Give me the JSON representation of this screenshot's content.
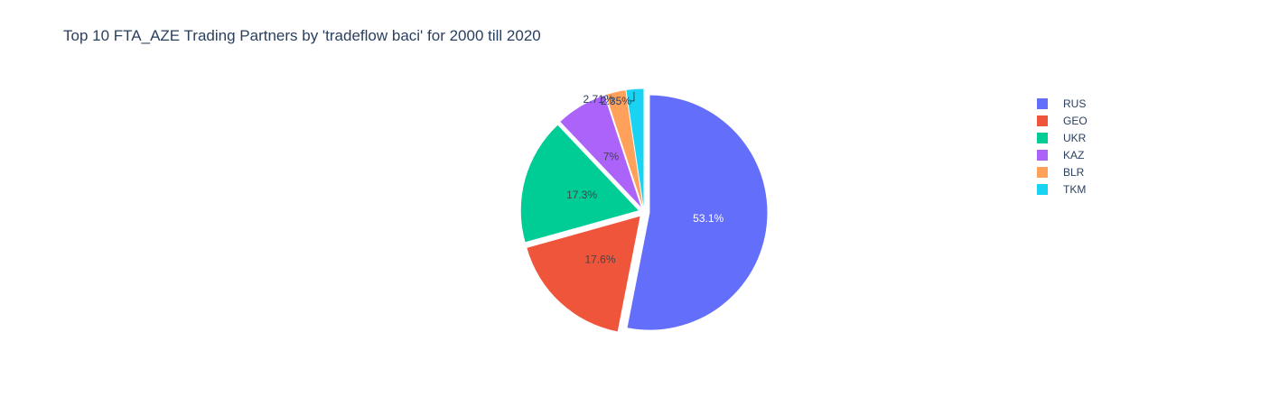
{
  "chart_data": {
    "type": "pie",
    "title": "Top 10 FTA_AZE Trading Partners by 'tradeflow baci' for 2000 till 2020",
    "legend_position": "top-right",
    "slices": [
      {
        "label": "RUS",
        "value": 53.1,
        "text": "53.1%",
        "color": "#636efa",
        "text_color": "#ffffff"
      },
      {
        "label": "GEO",
        "value": 17.6,
        "text": "17.6%",
        "color": "#ef553b",
        "text_color": "#444444"
      },
      {
        "label": "UKR",
        "value": 17.3,
        "text": "17.3%",
        "color": "#00cc96",
        "text_color": "#444444"
      },
      {
        "label": "KAZ",
        "value": 7,
        "text": "7%",
        "color": "#ab63fa",
        "text_color": "#444444"
      },
      {
        "label": "BLR",
        "value": 2.71,
        "text": "2.71%",
        "color": "#ffa15a",
        "text_color": "#2a3f5f"
      },
      {
        "label": "TKM",
        "value": 2.35,
        "text": "2.35%",
        "color": "#19d3f3",
        "text_color": "#2a3f5f"
      }
    ]
  }
}
